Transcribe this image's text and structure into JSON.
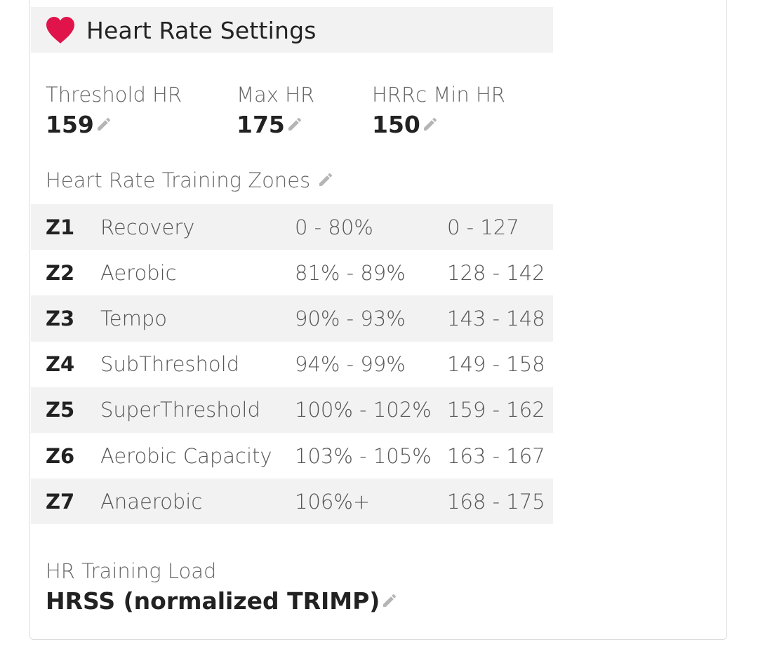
{
  "header": {
    "title": "Heart Rate Settings",
    "icon": "heart-icon",
    "icon_color": "#e0144a"
  },
  "stats": [
    {
      "label": "Threshold HR",
      "value": "159"
    },
    {
      "label": "Max HR",
      "value": "175"
    },
    {
      "label": "HRRc Min HR",
      "value": "150"
    }
  ],
  "zones": {
    "title": "Heart Rate Training Zones",
    "rows": [
      {
        "id": "Z1",
        "name": "Recovery",
        "pct": "0 - 80%",
        "bpm": "0 - 127"
      },
      {
        "id": "Z2",
        "name": "Aerobic",
        "pct": "81% - 89%",
        "bpm": "128 - 142"
      },
      {
        "id": "Z3",
        "name": "Tempo",
        "pct": "90% - 93%",
        "bpm": "143 - 148"
      },
      {
        "id": "Z4",
        "name": "SubThreshold",
        "pct": "94% - 99%",
        "bpm": "149 - 158"
      },
      {
        "id": "Z5",
        "name": "SuperThreshold",
        "pct": "100% - 102%",
        "bpm": "159 - 162"
      },
      {
        "id": "Z6",
        "name": "Aerobic Capacity",
        "pct": "103% - 105%",
        "bpm": "163 - 167"
      },
      {
        "id": "Z7",
        "name": "Anaerobic",
        "pct": "106%+",
        "bpm": "168 - 175"
      }
    ]
  },
  "training_load": {
    "label": "HR Training Load",
    "value": "HRSS (normalized TRIMP)"
  },
  "colors": {
    "accent": "#e0144a",
    "row_shade": "#f2f2f2",
    "edit_icon": "#b5b5b5"
  }
}
